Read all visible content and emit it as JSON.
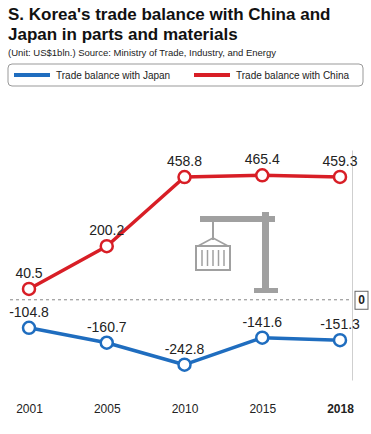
{
  "chart_data": {
    "type": "line",
    "title": "S. Korea's trade balance with China and Japan in parts and materials",
    "subtitle": "(Unit: US$1bln.) Source: Ministry of Trade, Industry, and Energy",
    "categories": [
      "2001",
      "2005",
      "2010",
      "2015",
      "2018"
    ],
    "series": [
      {
        "name": "Trade balance with Japan",
        "color": "#1f6dbf",
        "values": [
          -104.8,
          -160.7,
          -242.8,
          -141.6,
          -151.3
        ]
      },
      {
        "name": "Trade balance with China",
        "color": "#d81e26",
        "values": [
          40.5,
          200.2,
          458.8,
          465.4,
          459.3
        ]
      }
    ],
    "ylim": [
      -300,
      560
    ],
    "yticks": [
      0
    ],
    "grid": true,
    "legend": "top",
    "data_labels": true,
    "marker": "circle"
  }
}
